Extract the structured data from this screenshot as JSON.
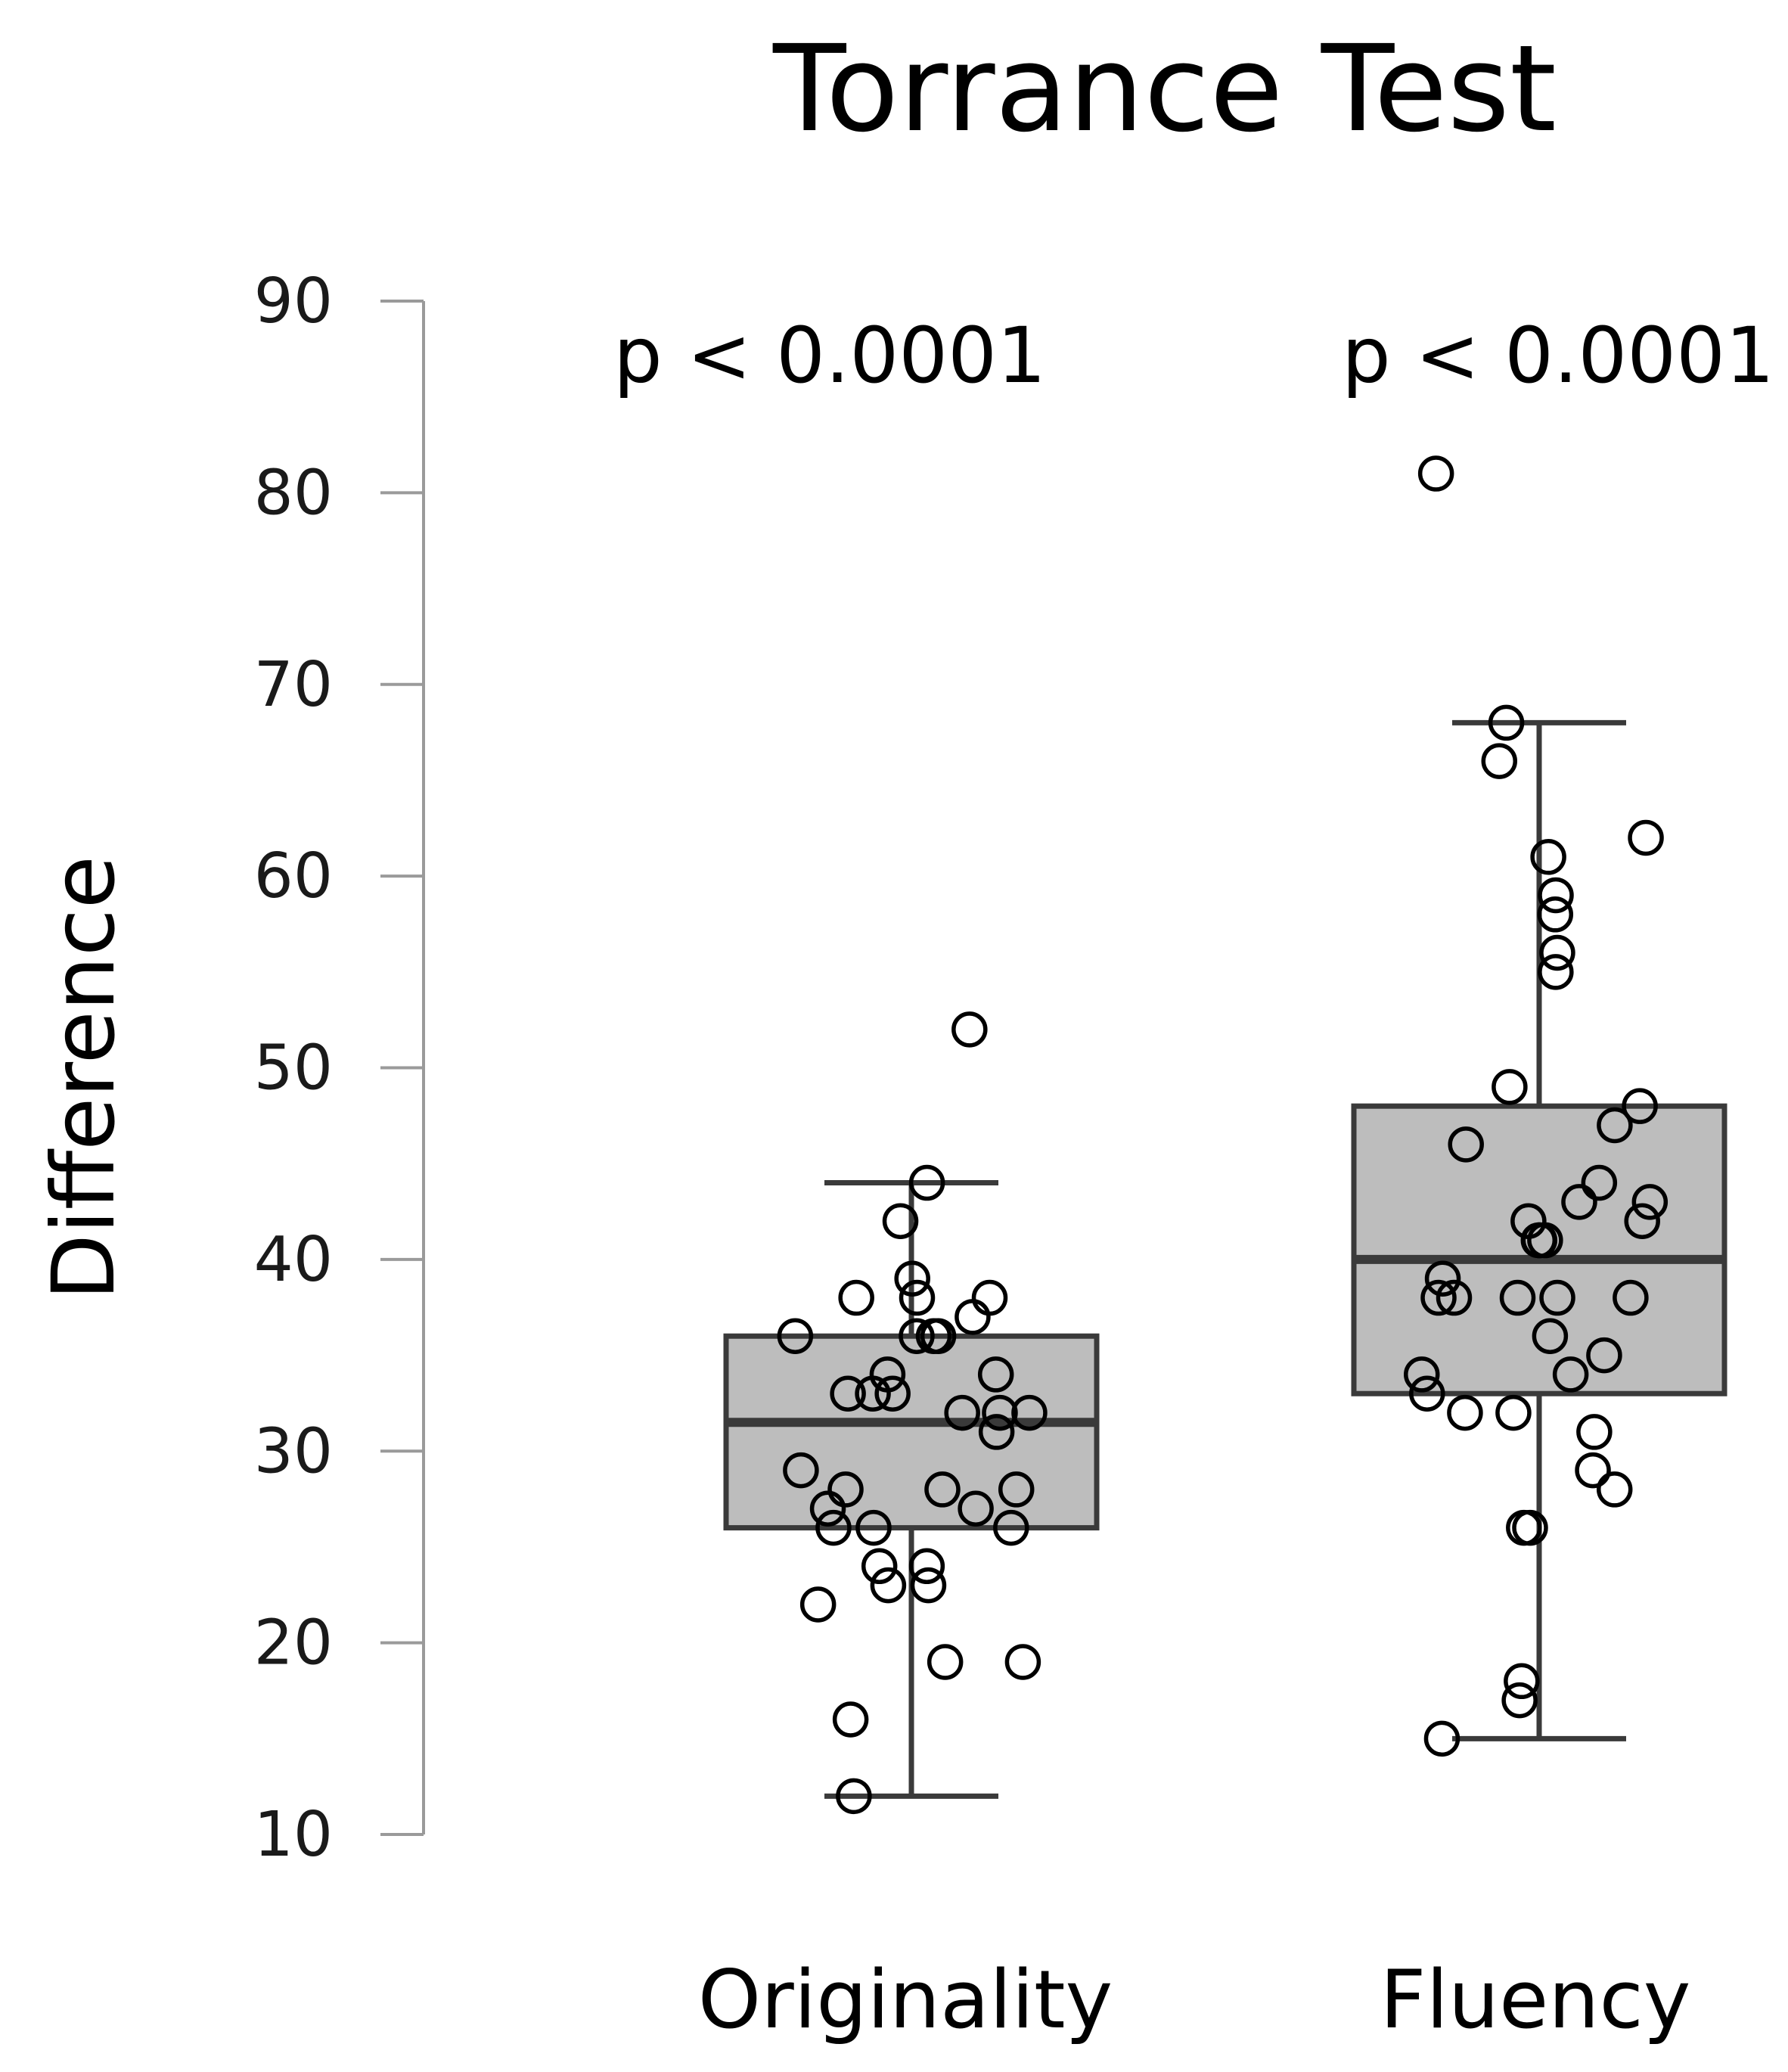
{
  "chart_data": {
    "type": "box",
    "title": "Torrance Test",
    "ylabel": "Difference",
    "xlabel": "",
    "ylim": [
      10,
      90
    ],
    "yticks": [
      10,
      20,
      30,
      40,
      50,
      60,
      70,
      80,
      90
    ],
    "categories": [
      "Originality",
      "Fluency"
    ],
    "annotations": [
      "p < 0.0001",
      "p < 0.0001"
    ],
    "boxes": [
      {
        "category": "Originality",
        "whisker_low": 12,
        "q1": 26,
        "median": 31.5,
        "q3": 36,
        "whisker_high": 44,
        "points": [
          52,
          44,
          42,
          38,
          38,
          37,
          39,
          38,
          36,
          36,
          36,
          36,
          34,
          34,
          33,
          33,
          33,
          32,
          32,
          32,
          31,
          29,
          28,
          28,
          28,
          27,
          27,
          26,
          26,
          26,
          24,
          24,
          23,
          23,
          22,
          19,
          19,
          16,
          12
        ]
      },
      {
        "category": "Fluency",
        "whisker_low": 15,
        "q1": 33,
        "median": 40,
        "q3": 48,
        "whisker_high": 68,
        "points": [
          81,
          68,
          66,
          62,
          61,
          59,
          58,
          56,
          55,
          49,
          48,
          47,
          46,
          44,
          43,
          43,
          42,
          42,
          41,
          41,
          41,
          39,
          38,
          38,
          38,
          38,
          38,
          36,
          35,
          34,
          34,
          33,
          32,
          32,
          31,
          29,
          28,
          26,
          26,
          18,
          17,
          15
        ]
      }
    ]
  }
}
